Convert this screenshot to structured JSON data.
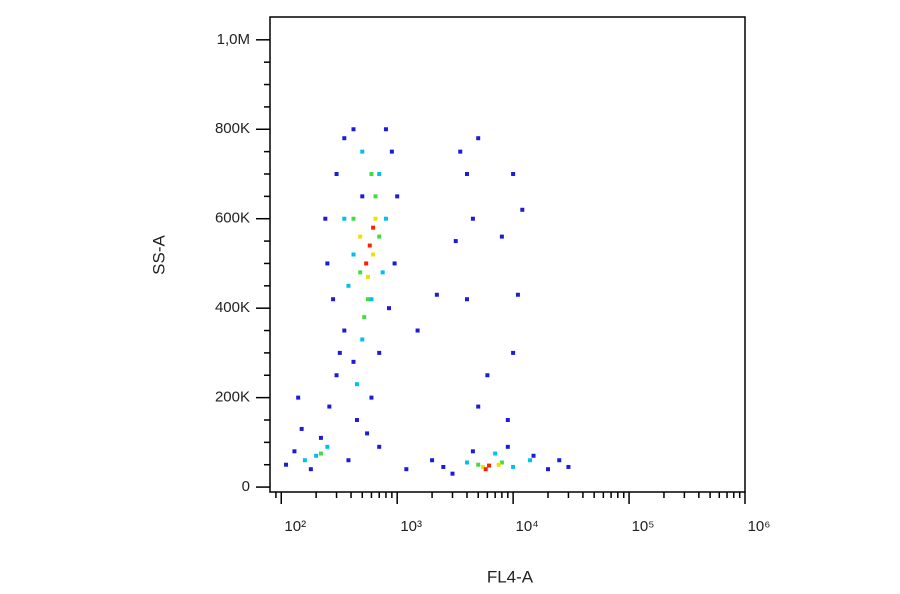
{
  "chart_data": {
    "type": "scatter",
    "x_label": "FL4-A",
    "y_label": "SS-A",
    "xscale": "log",
    "xlim": [
      80,
      1000000
    ],
    "xticks": [
      {
        "value": 100,
        "label": "10²"
      },
      {
        "value": 1000,
        "label": "10³"
      },
      {
        "value": 10000,
        "label": "10⁴"
      },
      {
        "value": 100000,
        "label": "10⁵"
      },
      {
        "value": 1000000,
        "label": "10⁶"
      }
    ],
    "ylim": [
      -11000,
      1051000
    ],
    "yticks": [
      0,
      {
        "value": 200000,
        "label": "200K"
      },
      {
        "value": 400000,
        "label": "400K"
      },
      {
        "value": 600000,
        "label": "600K"
      },
      {
        "value": 800000,
        "label": "800K"
      },
      {
        "value": 1000000,
        "label": "1,0M"
      }
    ],
    "series": [
      {
        "color": "#1c1cd8",
        "x": [
          130,
          150,
          180,
          220,
          260,
          300,
          320,
          280,
          250,
          240,
          300,
          350,
          420,
          800,
          900,
          1000,
          950,
          850,
          700,
          600,
          450,
          380,
          1200,
          2000,
          3000,
          4500,
          9000,
          15000,
          25000,
          30000,
          3500,
          4000,
          5000,
          4500,
          3200,
          8000,
          12000,
          10000,
          6000,
          10000,
          11000,
          4000,
          2200,
          1500,
          9000,
          5000,
          700,
          110,
          140,
          500,
          350,
          420,
          550,
          2500,
          20000
        ],
        "values": [
          80000,
          130000,
          40000,
          110000,
          180000,
          250000,
          300000,
          420000,
          500000,
          600000,
          700000,
          780000,
          800000,
          800000,
          750000,
          650000,
          500000,
          400000,
          300000,
          200000,
          150000,
          60000,
          40000,
          60000,
          30000,
          80000,
          90000,
          70000,
          60000,
          45000,
          750000,
          700000,
          780000,
          600000,
          550000,
          560000,
          620000,
          700000,
          250000,
          300000,
          430000,
          420000,
          430000,
          350000,
          150000,
          180000,
          90000,
          50000,
          200000,
          650000,
          350000,
          280000,
          120000,
          45000,
          40000
        ]
      },
      {
        "color": "#00c0f0",
        "x": [
          350,
          380,
          700,
          800,
          600,
          500,
          450,
          200,
          250,
          160,
          4000,
          10000,
          14000,
          7000,
          500,
          420,
          750
        ],
        "values": [
          600000,
          450000,
          700000,
          600000,
          420000,
          330000,
          230000,
          70000,
          90000,
          60000,
          55000,
          45000,
          60000,
          75000,
          750000,
          520000,
          480000
        ]
      },
      {
        "color": "#40dc40",
        "x": [
          420,
          650,
          700,
          480,
          560,
          220,
          5000,
          8000,
          520,
          600
        ],
        "values": [
          600000,
          650000,
          560000,
          480000,
          420000,
          75000,
          50000,
          55000,
          380000,
          700000
        ]
      },
      {
        "color": "#f0e000",
        "x": [
          480,
          650,
          560,
          5500,
          7500,
          620
        ],
        "values": [
          560000,
          600000,
          470000,
          45000,
          50000,
          520000
        ]
      },
      {
        "color": "#ff2000",
        "x": [
          580,
          540,
          620,
          6200,
          5800
        ],
        "values": [
          540000,
          500000,
          580000,
          48000,
          40000
        ]
      }
    ]
  }
}
